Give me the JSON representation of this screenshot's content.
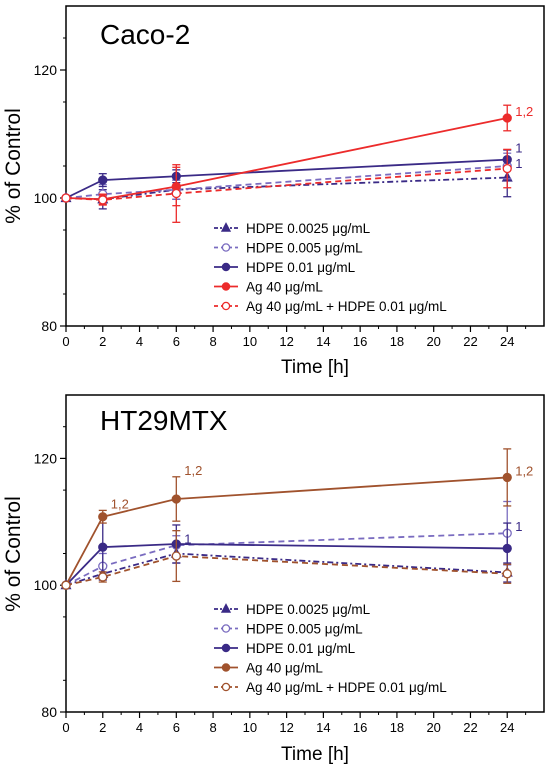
{
  "colors": {
    "hdpe": "#3a2a86",
    "hdpe_light": "#7a6cc0",
    "ag_top": "#ec2b2b",
    "ag_bottom": "#a0522d",
    "axis": "#000000"
  },
  "chart_data": [
    {
      "type": "line",
      "title": "Caco-2",
      "xlabel": "Time [h]",
      "ylabel": "% of Control",
      "xlim": [
        0,
        26
      ],
      "ylim": [
        80,
        130
      ],
      "xticks": [
        0,
        2,
        4,
        6,
        8,
        10,
        12,
        14,
        16,
        18,
        20,
        22,
        24
      ],
      "yticks": [
        80,
        100,
        120
      ],
      "grid": false,
      "legend_position": "bottom-right",
      "series": [
        {
          "name": "HDPE 0.0025 μg/mL",
          "x": [
            0,
            2,
            6,
            24
          ],
          "y": [
            100,
            99.8,
            101.3,
            103.2
          ],
          "err": [
            0,
            1.5,
            1.5,
            3
          ],
          "color": "hdpe",
          "style": "dash-dot",
          "marker": "triangle",
          "fill": true
        },
        {
          "name": "HDPE 0.005 μg/mL",
          "x": [
            0,
            2,
            6,
            24
          ],
          "y": [
            100,
            100.6,
            101.3,
            105
          ],
          "err": [
            0,
            1.5,
            1.5,
            2
          ],
          "color": "hdpe_light",
          "style": "dash",
          "marker": "circle",
          "fill": false
        },
        {
          "name": "HDPE 0.01 μg/mL",
          "x": [
            0,
            2,
            6,
            24
          ],
          "y": [
            100,
            102.8,
            103.4,
            106
          ],
          "err": [
            0,
            1,
            1,
            1.5
          ],
          "color": "hdpe",
          "style": "solid",
          "marker": "circle",
          "fill": true
        },
        {
          "name": "Ag 40 μg/mL",
          "x": [
            0,
            2,
            6,
            24
          ],
          "y": [
            100,
            99.8,
            101.8,
            112.5
          ],
          "err": [
            0,
            0.8,
            3,
            2
          ],
          "color": "ag_top",
          "style": "solid",
          "marker": "circle",
          "fill": true
        },
        {
          "name": "Ag 40 μg/mL + HDPE 0.01 μg/mL",
          "x": [
            0,
            2,
            6,
            24
          ],
          "y": [
            100,
            99.7,
            100.7,
            104.6
          ],
          "err": [
            0,
            0.8,
            4.5,
            3
          ],
          "color": "ag_top",
          "style": "dash",
          "marker": "circle",
          "fill": false
        }
      ],
      "annotations": [
        {
          "text": "1,2",
          "x": 24,
          "y": 112.5,
          "color": "ag_top"
        },
        {
          "text": "1",
          "x": 24,
          "y": 106.8,
          "color": "hdpe"
        },
        {
          "text": "1",
          "x": 24,
          "y": 104.4,
          "color": "hdpe"
        }
      ]
    },
    {
      "type": "line",
      "title": "HT29MTX",
      "xlabel": "Time [h]",
      "ylabel": "% of Control",
      "xlim": [
        0,
        26
      ],
      "ylim": [
        80,
        130
      ],
      "xticks": [
        0,
        2,
        4,
        6,
        8,
        10,
        12,
        14,
        16,
        18,
        20,
        22,
        24
      ],
      "yticks": [
        80,
        100,
        120
      ],
      "grid": false,
      "legend_position": "bottom-right",
      "series": [
        {
          "name": "HDPE 0.0025 μg/mL",
          "x": [
            0,
            2,
            6,
            24
          ],
          "y": [
            100,
            101.8,
            105,
            102
          ],
          "err": [
            0,
            1,
            1.5,
            1.5
          ],
          "color": "hdpe",
          "style": "dash-dot",
          "marker": "triangle",
          "fill": true
        },
        {
          "name": "HDPE 0.005 μg/mL",
          "x": [
            0,
            2,
            6,
            24
          ],
          "y": [
            100,
            103,
            106.3,
            108.2
          ],
          "err": [
            0,
            2,
            1.5,
            5
          ],
          "color": "hdpe_light",
          "style": "dash",
          "marker": "circle",
          "fill": false
        },
        {
          "name": "HDPE 0.01 μg/mL",
          "x": [
            0,
            2,
            6,
            24
          ],
          "y": [
            100,
            106,
            106.5,
            105.8
          ],
          "err": [
            0,
            5,
            3,
            4
          ],
          "color": "hdpe",
          "style": "solid",
          "marker": "circle",
          "fill": true
        },
        {
          "name": "Ag 40 μg/mL",
          "x": [
            0,
            2,
            6,
            24
          ],
          "y": [
            100,
            110.8,
            113.6,
            117
          ],
          "err": [
            0,
            1,
            3.5,
            4.5
          ],
          "color": "ag_bottom",
          "style": "solid",
          "marker": "circle",
          "fill": true
        },
        {
          "name": "Ag 40 μg/mL + HDPE 0.01 μg/mL",
          "x": [
            0,
            2,
            6,
            24
          ],
          "y": [
            100,
            101.3,
            104.6,
            101.8
          ],
          "err": [
            0,
            0.8,
            4,
            1.5
          ],
          "color": "ag_bottom",
          "style": "dash",
          "marker": "circle",
          "fill": false
        }
      ],
      "annotations": [
        {
          "text": "1,2",
          "x": 2,
          "y": 111.8,
          "color": "ag_bottom"
        },
        {
          "text": "1,2",
          "x": 6,
          "y": 117.1,
          "color": "ag_bottom"
        },
        {
          "text": "1,2",
          "x": 24,
          "y": 117,
          "color": "ag_bottom"
        },
        {
          "text": "1",
          "x": 6,
          "y": 106.3,
          "color": "hdpe"
        },
        {
          "text": "1",
          "x": 24,
          "y": 108.2,
          "color": "hdpe"
        }
      ]
    }
  ]
}
